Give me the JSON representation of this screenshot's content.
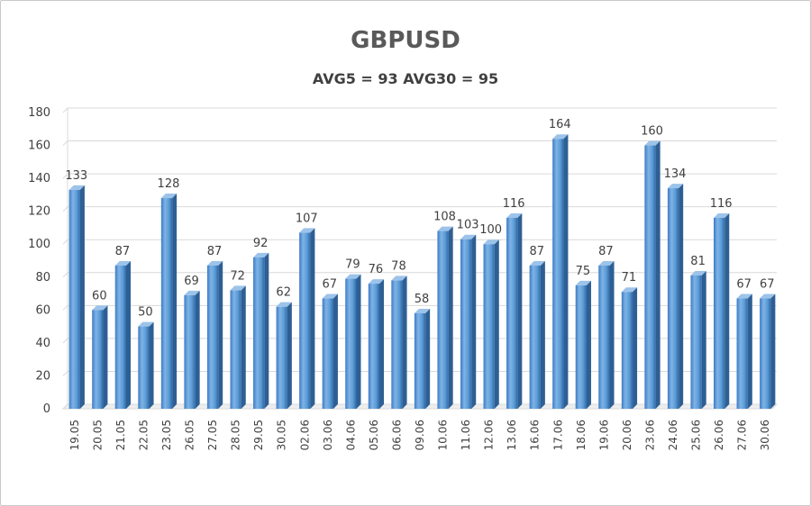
{
  "chart_data": {
    "type": "bar",
    "title": "GBPUSD",
    "subtitle": "AVG5 = 93 AVG30 = 95",
    "xlabel": "",
    "ylabel": "",
    "ylim": [
      0,
      180
    ],
    "ytick_step": 20,
    "grid": true,
    "legend": "none",
    "bar_color": "#5b9bd5",
    "categories": [
      "19.05",
      "20.05",
      "21.05",
      "22.05",
      "23.05",
      "26.05",
      "27.05",
      "28.05",
      "29.05",
      "30.05",
      "02.06",
      "03.06",
      "04.06",
      "05.06",
      "06.06",
      "09.06",
      "10.06",
      "11.06",
      "12.06",
      "13.06",
      "16.06",
      "17.06",
      "18.06",
      "19.06",
      "20.06",
      "23.06",
      "24.06",
      "25.06",
      "26.06",
      "27.06",
      "30.06"
    ],
    "values": [
      133,
      60,
      87,
      50,
      128,
      69,
      87,
      72,
      92,
      62,
      107,
      67,
      79,
      76,
      78,
      58,
      108,
      103,
      100,
      116,
      87,
      164,
      75,
      87,
      71,
      160,
      134,
      81,
      116,
      67,
      67
    ]
  }
}
